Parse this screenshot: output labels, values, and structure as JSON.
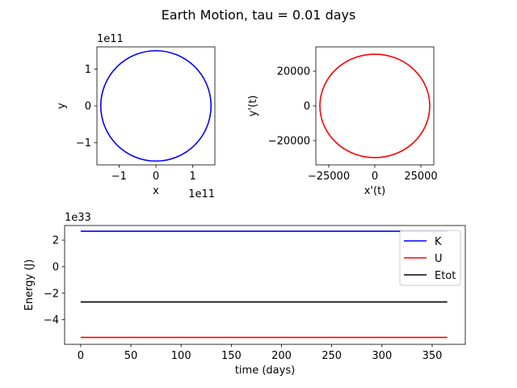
{
  "suptitle": "Earth Motion, tau = 0.01 days",
  "chart_data": [
    {
      "type": "line",
      "panel": "position",
      "xlabel": "x",
      "ylabel": "y",
      "x_offset_label": "1e11",
      "y_offset_label": "1e11",
      "xlim": [
        -1.6,
        1.6
      ],
      "ylim": [
        -1.6,
        1.6
      ],
      "x_ticks": [
        -1,
        0,
        1
      ],
      "y_ticks": [
        -1,
        0,
        1
      ],
      "x_tick_labels": [
        "−1",
        "0",
        "1"
      ],
      "y_tick_labels": [
        "−1",
        "0",
        "1"
      ],
      "series": [
        {
          "shape": "circle",
          "center": [
            0,
            0
          ],
          "radius": 1.496,
          "color": "#0000ff"
        }
      ]
    },
    {
      "type": "line",
      "panel": "velocity",
      "xlabel": "x'(t)",
      "ylabel": "y'(t)",
      "xlim": [
        -32000,
        32000
      ],
      "ylim": [
        -34000,
        34000
      ],
      "x_ticks": [
        -25000,
        0,
        25000
      ],
      "y_ticks": [
        -20000,
        0,
        20000
      ],
      "x_tick_labels": [
        "−25000",
        "0",
        "25000"
      ],
      "y_tick_labels": [
        "−20000",
        "0",
        "20000"
      ],
      "series": [
        {
          "shape": "circle",
          "center": [
            0,
            0
          ],
          "radius": 29800,
          "color": "#ff0000"
        }
      ]
    },
    {
      "type": "line",
      "panel": "energy",
      "xlabel": "time (days)",
      "ylabel": "Energy (J)",
      "y_offset_label": "1e33",
      "xlim": [
        -16,
        383
      ],
      "ylim": [
        -5.85,
        3.1
      ],
      "x_ticks": [
        0,
        50,
        100,
        150,
        200,
        250,
        300,
        350
      ],
      "y_ticks": [
        -4,
        -2,
        0,
        2
      ],
      "x_tick_labels": [
        "0",
        "50",
        "100",
        "150",
        "200",
        "250",
        "300",
        "350"
      ],
      "y_tick_labels": [
        "−4",
        "−2",
        "0",
        "2"
      ],
      "legend_placement": "upper right",
      "series": [
        {
          "name": "K",
          "color": "#0000ff",
          "x": [
            0,
            365
          ],
          "y": [
            2.67,
            2.67
          ]
        },
        {
          "name": "U",
          "color": "#ff0000",
          "x": [
            0,
            365
          ],
          "y": [
            -5.33,
            -5.33
          ]
        },
        {
          "name": "Etot",
          "color": "#000000",
          "x": [
            0,
            365
          ],
          "y": [
            -2.66,
            -2.66
          ]
        }
      ]
    }
  ]
}
